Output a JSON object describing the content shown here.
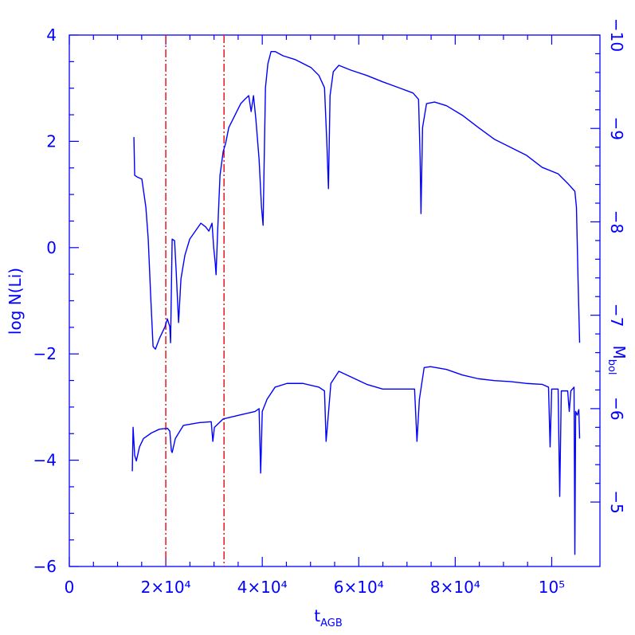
{
  "chart_data": {
    "type": "line",
    "xlabel": {
      "main": "t",
      "sub": "AGB"
    },
    "ylabel": "log N(Li)",
    "y2label": {
      "main": "M",
      "sub": "bol"
    },
    "xlim": [
      0,
      110000
    ],
    "ylim": [
      -6,
      4
    ],
    "y2lim": [
      -4.31,
      -10
    ],
    "xticks": [
      0,
      {
        "value": 20000,
        "label": "2×10⁴"
      },
      {
        "value": 40000,
        "label": "4×10⁴"
      },
      {
        "value": 60000,
        "label": "6×10⁴"
      },
      {
        "value": 80000,
        "label": "8×10⁴"
      },
      {
        "value": 100000,
        "label": "10⁵"
      }
    ],
    "yticks": [
      {
        "value": -6,
        "label": "−6"
      },
      {
        "value": -4,
        "label": "−4"
      },
      {
        "value": -2,
        "label": "−2"
      },
      0,
      2,
      4
    ],
    "y2ticks": [
      {
        "value": -10,
        "label": "−10"
      },
      {
        "value": -9,
        "label": "−9"
      },
      {
        "value": -8,
        "label": "−8"
      },
      {
        "value": -7,
        "label": "−7"
      },
      {
        "value": -6,
        "label": "−6"
      },
      {
        "value": -5,
        "label": "−5"
      }
    ],
    "vlines": [
      {
        "x": 20000,
        "color": "#e8141e"
      },
      {
        "x": 32070,
        "color": "#e8141e"
      }
    ],
    "series": [
      {
        "color": "#0000ff",
        "axis": "y",
        "x": [
          13390,
          13550,
          14050,
          15040,
          15870,
          16360,
          16860,
          17360,
          17850,
          18680,
          19830,
          20330,
          20830,
          20990,
          21320,
          21820,
          22150,
          22650,
          23140,
          23970,
          24960,
          26120,
          27270,
          28270,
          28930,
          29590,
          29920,
          30250,
          30420,
          30750,
          31240,
          31900,
          32400,
          33060,
          33890,
          34710,
          35540,
          36370,
          37190,
          37690,
          38180,
          38680,
          39340,
          39840,
          40170,
          40660,
          41160,
          41820,
          42650,
          44300,
          46780,
          50090,
          51740,
          52900,
          53390,
          53720,
          54050,
          54720,
          55870,
          58350,
          61660,
          64960,
          68270,
          71240,
          72400,
          72730,
          72900,
          73230,
          74050,
          75710,
          78190,
          81490,
          84800,
          88100,
          91410,
          94720,
          98020,
          101330,
          103310,
          104300,
          104800,
          105130,
          105460,
          105790
        ],
        "values": [
          2.08,
          1.36,
          1.33,
          1.29,
          0.76,
          0.16,
          -0.89,
          -1.86,
          -1.91,
          -1.71,
          -1.49,
          -1.34,
          -1.49,
          -1.79,
          0.16,
          0.13,
          -0.44,
          -1.41,
          -0.59,
          -0.14,
          0.16,
          0.31,
          0.46,
          0.39,
          0.31,
          0.46,
          0.01,
          -0.29,
          -0.51,
          0.31,
          1.36,
          1.81,
          1.96,
          2.26,
          2.41,
          2.56,
          2.71,
          2.79,
          2.86,
          2.56,
          2.86,
          2.41,
          1.66,
          0.76,
          0.42,
          3.01,
          3.46,
          3.69,
          3.69,
          3.61,
          3.54,
          3.39,
          3.24,
          3.01,
          1.96,
          1.11,
          2.86,
          3.31,
          3.43,
          3.34,
          3.24,
          3.12,
          3.01,
          2.91,
          2.79,
          1.66,
          0.64,
          2.26,
          2.71,
          2.74,
          2.67,
          2.49,
          2.26,
          2.04,
          1.89,
          1.74,
          1.51,
          1.39,
          1.21,
          1.11,
          1.06,
          0.76,
          -0.59,
          -1.79
        ]
      },
      {
        "color": "#0000ff",
        "axis": "y2",
        "x": [
          13060,
          13220,
          13550,
          13890,
          14550,
          15370,
          17030,
          18680,
          20330,
          20830,
          21160,
          21320,
          21980,
          23640,
          26940,
          29420,
          29750,
          30080,
          31900,
          35210,
          38510,
          39340,
          39670,
          40000,
          40990,
          42650,
          45130,
          48430,
          51740,
          52900,
          53230,
          53560,
          54220,
          55870,
          58350,
          61660,
          64960,
          68270,
          71570,
          72070,
          72570,
          73560,
          74880,
          78190,
          81490,
          84800,
          88100,
          91410,
          94720,
          98020,
          99340,
          99670,
          100000,
          101330,
          101660,
          101990,
          103310,
          103640,
          103970,
          104630,
          104800,
          104960,
          105290,
          105620,
          105790
        ],
        "values": [
          -5.33,
          -5.8,
          -5.5,
          -5.44,
          -5.59,
          -5.68,
          -5.74,
          -5.78,
          -5.79,
          -5.76,
          -5.55,
          -5.53,
          -5.68,
          -5.82,
          -5.85,
          -5.86,
          -5.65,
          -5.8,
          -5.89,
          -5.93,
          -5.97,
          -6.0,
          -5.31,
          -5.97,
          -6.1,
          -6.23,
          -6.27,
          -6.27,
          -6.23,
          -6.19,
          -5.65,
          -5.85,
          -6.27,
          -6.4,
          -6.34,
          -6.26,
          -6.21,
          -6.21,
          -6.21,
          -5.65,
          -6.1,
          -6.44,
          -6.45,
          -6.42,
          -6.36,
          -6.32,
          -6.3,
          -6.29,
          -6.27,
          -6.26,
          -6.23,
          -5.59,
          -6.21,
          -6.21,
          -5.06,
          -6.19,
          -6.19,
          -5.97,
          -6.19,
          -6.23,
          -4.44,
          -5.97,
          -5.93,
          -5.99,
          -5.68
        ]
      }
    ]
  }
}
